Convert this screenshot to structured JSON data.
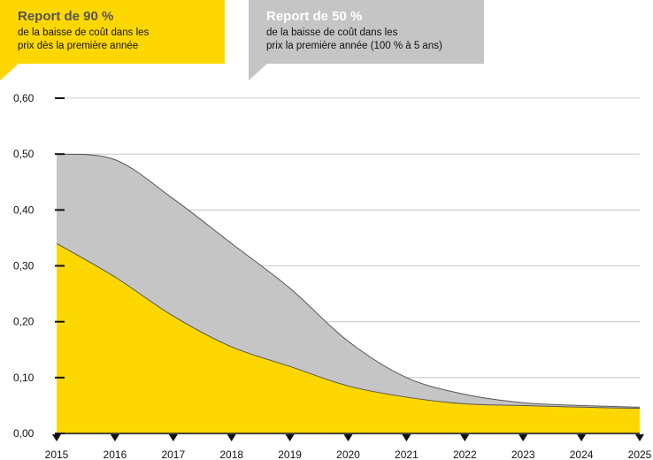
{
  "callouts": {
    "yellow": {
      "title": "Report de 90 %",
      "line1": "de la baisse de coût dans les",
      "line2": "prix dès la première année",
      "color": "#FFD700"
    },
    "grey": {
      "title": "Report de 50 %",
      "line1": "de la baisse de coût dans les",
      "line2": "prix la première année (100 % à 5 ans)",
      "color": "#C5C5C5"
    }
  },
  "chart_data": {
    "type": "area",
    "x": [
      "2015",
      "2016",
      "2017",
      "2018",
      "2019",
      "2020",
      "2021",
      "2022",
      "2023",
      "2024",
      "2025"
    ],
    "series": [
      {
        "values": [
          0.34,
          0.28,
          0.21,
          0.155,
          0.12,
          0.085,
          0.065,
          0.053,
          0.05,
          0.047,
          0.045
        ],
        "color": "#FFD700"
      },
      {
        "values": [
          0.5,
          0.49,
          0.42,
          0.34,
          0.26,
          0.165,
          0.1,
          0.07,
          0.055,
          0.05,
          0.047
        ],
        "color": "#C5C5C5"
      }
    ],
    "yticks": [
      "0,00",
      "0,10",
      "0,20",
      "0,30",
      "0,40",
      "0,50",
      "0,60"
    ],
    "ylim": [
      0,
      0.6
    ],
    "grid": true
  }
}
